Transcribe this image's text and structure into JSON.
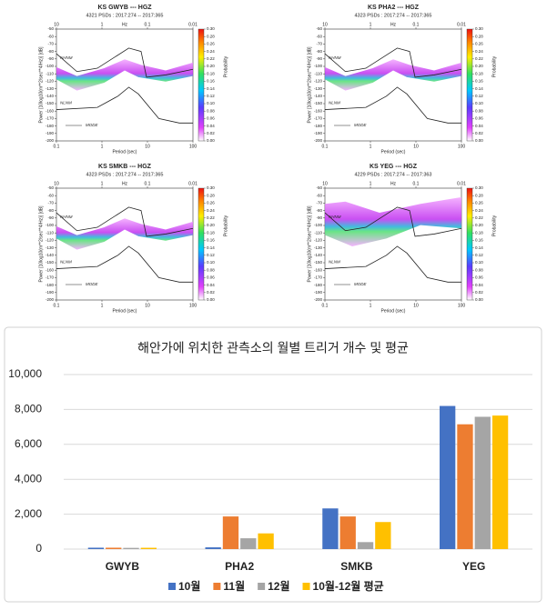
{
  "chart_data": [
    {
      "type": "psd",
      "title": "KS GWYB --- HGZ",
      "subtitle": "4321 PSDs : 2017:274 -- 2017:365",
      "ylabel": "Power [10log10(m**2/sec**4/Hz)] [dB]",
      "xlabel": "Period (sec)",
      "colorbar_label": "Probability",
      "xlim": [
        0.1,
        100
      ],
      "xticks": [
        0.1,
        1,
        10,
        100
      ],
      "log_x": true,
      "top_ticks": [
        10,
        1,
        0.1,
        0.01
      ],
      "top_label": "Hz",
      "ylim": [
        -200,
        -50
      ],
      "yticks": [
        -50,
        -60,
        -70,
        -80,
        -90,
        -100,
        -110,
        -120,
        -130,
        -140,
        -150,
        -160,
        -170,
        -180,
        -190,
        -200
      ],
      "clim": [
        0,
        0.3
      ],
      "cticks": [
        {
          "value": 0,
          "label": "0.00"
        },
        0.02,
        0.04,
        0.06,
        0.08,
        {
          "value": 0.1,
          "label": "0.10"
        },
        0.12,
        0.14,
        0.16,
        0.18,
        {
          "value": 0.2,
          "label": "0.20"
        },
        0.22,
        0.24,
        0.26,
        0.28,
        {
          "value": 0.3,
          "label": "0.30"
        }
      ],
      "annotations": [
        "NHNM",
        "NLNM",
        "MODE"
      ]
    },
    {
      "type": "psd",
      "title": "KS PHA2 --- HGZ",
      "subtitle": "4323 PSDs : 2017:274 -- 2017:365",
      "ylabel": "Power [10log10(m**2/sec**4/Hz)] [dB]",
      "xlabel": "Period (sec)",
      "colorbar_label": "Probability",
      "xlim": [
        0.1,
        100
      ],
      "xticks": [
        0.1,
        1,
        10,
        100
      ],
      "log_x": true,
      "top_ticks": [
        10,
        1,
        0.1,
        0.01
      ],
      "top_label": "Hz",
      "ylim": [
        -200,
        -50
      ],
      "yticks": [
        -50,
        -60,
        -70,
        -80,
        -90,
        -100,
        -110,
        -120,
        -130,
        -140,
        -150,
        -160,
        -170,
        -180,
        -190,
        -200
      ],
      "clim": [
        0,
        0.3
      ],
      "cticks": [
        {
          "value": 0,
          "label": "0.00"
        },
        0.02,
        0.04,
        0.06,
        0.08,
        {
          "value": 0.1,
          "label": "0.10"
        },
        0.12,
        0.14,
        0.16,
        0.18,
        {
          "value": 0.2,
          "label": "0.20"
        },
        0.22,
        0.24,
        0.26,
        0.28,
        {
          "value": 0.3,
          "label": "0.30"
        }
      ],
      "annotations": [
        "NHNM",
        "NLNM",
        "MODE"
      ]
    },
    {
      "type": "psd",
      "title": "KS SMKB --- HGZ",
      "subtitle": "4323 PSDs : 2017:274 -- 2017:365",
      "ylabel": "Power [10log10(m**2/sec**4/Hz)] [dB]",
      "xlabel": "Period (sec)",
      "colorbar_label": "Probability",
      "xlim": [
        0.1,
        100
      ],
      "xticks": [
        0.1,
        1,
        10,
        100
      ],
      "log_x": true,
      "top_ticks": [
        10,
        1,
        0.1,
        0.01
      ],
      "top_label": "Hz",
      "ylim": [
        -200,
        -50
      ],
      "yticks": [
        -50,
        -60,
        -70,
        -80,
        -90,
        -100,
        -110,
        -120,
        -130,
        -140,
        -150,
        -160,
        -170,
        -180,
        -190,
        -200
      ],
      "clim": [
        0,
        0.3
      ],
      "cticks": [
        {
          "value": 0,
          "label": "0.00"
        },
        0.02,
        0.04,
        0.06,
        0.08,
        {
          "value": 0.1,
          "label": "0.10"
        },
        0.12,
        0.14,
        0.16,
        0.18,
        {
          "value": 0.2,
          "label": "0.20"
        },
        0.22,
        0.24,
        0.26,
        0.28,
        {
          "value": 0.3,
          "label": "0.30"
        }
      ],
      "annotations": [
        "NHNM",
        "NLNM",
        "MODE"
      ]
    },
    {
      "type": "psd",
      "title": "KS YEG --- HGZ",
      "subtitle": "4229 PSDs : 2017:274 -- 2017:363",
      "ylabel": "Power [10log10(m**2/sec**4/Hz)] [dB]",
      "xlabel": "Period (sec)",
      "colorbar_label": "Probability",
      "xlim": [
        0.1,
        100
      ],
      "xticks": [
        0.1,
        1,
        10,
        100
      ],
      "log_x": true,
      "top_ticks": [
        10,
        1,
        0.1,
        0.01
      ],
      "top_label": "Hz",
      "ylim": [
        -200,
        -50
      ],
      "yticks": [
        -50,
        -60,
        -70,
        -80,
        -90,
        -100,
        -110,
        -120,
        -130,
        -140,
        -150,
        -160,
        -170,
        -180,
        -190,
        -200
      ],
      "clim": [
        0,
        0.3
      ],
      "cticks": [
        {
          "value": 0,
          "label": "0.00"
        },
        0.02,
        0.04,
        0.06,
        0.08,
        {
          "value": 0.1,
          "label": "0.10"
        },
        0.12,
        0.14,
        0.16,
        0.18,
        {
          "value": 0.2,
          "label": "0.20"
        },
        0.22,
        0.24,
        0.26,
        0.28,
        {
          "value": 0.3,
          "label": "0.30"
        }
      ],
      "annotations": [
        "NHNM",
        "NLNM",
        "MODE"
      ]
    },
    {
      "type": "bar",
      "title": "해안가에 위치한 관측소의 월별 트리거 개수 및 평균",
      "categories": [
        "GWYB",
        "PHA2",
        "SMKB",
        "YEG"
      ],
      "series": [
        {
          "name": "10월",
          "color": "#4472c4",
          "values": [
            80,
            100,
            2330,
            8200
          ]
        },
        {
          "name": "11월",
          "color": "#ed7d31",
          "values": [
            80,
            1870,
            1870,
            7150
          ]
        },
        {
          "name": "12월",
          "color": "#a5a5a5",
          "values": [
            70,
            620,
            400,
            7580
          ]
        },
        {
          "name": "10월-12월 평균",
          "color": "#ffc000",
          "values": [
            75,
            900,
            1550,
            7650
          ]
        }
      ],
      "ylim": [
        0,
        10000
      ],
      "yticks": [
        0,
        {
          "value": 2000,
          "label": "2,000"
        },
        {
          "value": 4000,
          "label": "4,000"
        },
        {
          "value": 6000,
          "label": "6,000"
        },
        {
          "value": 8000,
          "label": "8,000"
        },
        {
          "value": 10000,
          "label": "10,000"
        }
      ],
      "grid": true,
      "legend": "bottom"
    }
  ]
}
